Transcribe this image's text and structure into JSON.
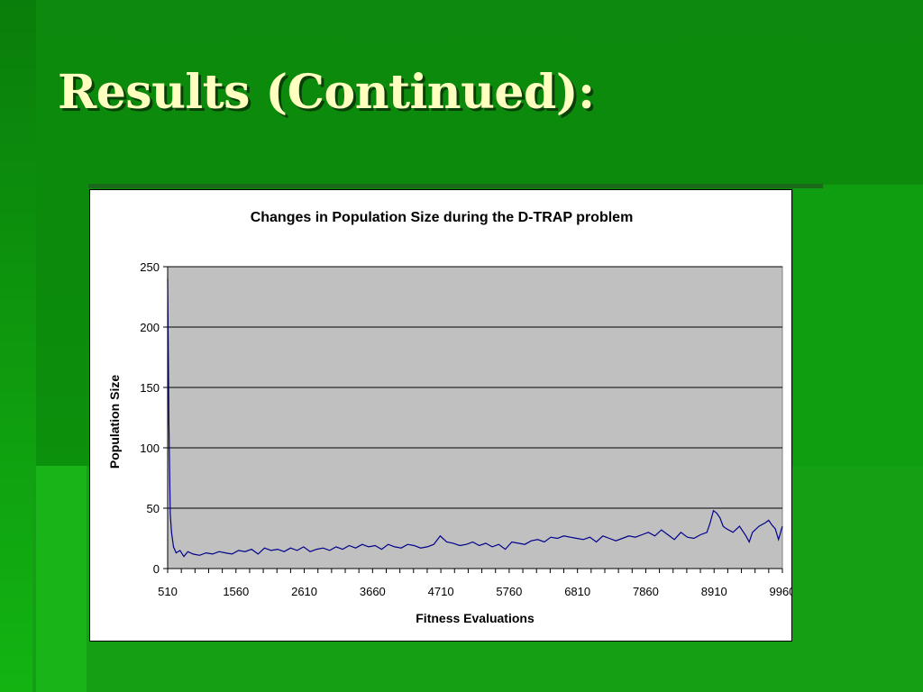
{
  "slide": {
    "title": "Results (Continued):"
  },
  "colors": {
    "series": "#00008b",
    "plot_bg": "#c0c0c0",
    "title_text": "#ffffc0"
  },
  "chart_data": {
    "type": "line",
    "title": "Changes in Population Size during the D-TRAP problem",
    "xlabel": "Fitness Evaluations",
    "ylabel": "Population Size",
    "ylim": [
      0,
      250
    ],
    "yticks": [
      0,
      50,
      100,
      150,
      200,
      250
    ],
    "xlim": [
      510,
      9960
    ],
    "xticks": [
      510,
      1560,
      2610,
      3660,
      4710,
      5760,
      6810,
      7860,
      8910,
      9960
    ],
    "grid": "horizontal",
    "legend": "none",
    "series": [
      {
        "x": [
          510,
          530,
          550,
          570,
          600,
          640,
          700,
          760,
          820,
          900,
          1000,
          1100,
          1200,
          1300,
          1400,
          1500,
          1600,
          1700,
          1800,
          1900,
          2000,
          2100,
          2200,
          2300,
          2400,
          2500,
          2600,
          2700,
          2800,
          2900,
          3000,
          3100,
          3200,
          3300,
          3400,
          3500,
          3600,
          3700,
          3800,
          3900,
          4000,
          4100,
          4200,
          4300,
          4400,
          4500,
          4600,
          4700,
          4800,
          4900,
          5000,
          5100,
          5200,
          5300,
          5400,
          5500,
          5600,
          5700,
          5800,
          5900,
          6000,
          6100,
          6200,
          6300,
          6400,
          6500,
          6600,
          6700,
          6800,
          6900,
          7000,
          7100,
          7200,
          7300,
          7400,
          7500,
          7600,
          7700,
          7800,
          7900,
          8000,
          8100,
          8200,
          8300,
          8400,
          8500,
          8600,
          8700,
          8800,
          8850,
          8900,
          8950,
          9000,
          9050,
          9100,
          9200,
          9300,
          9400,
          9450,
          9500,
          9600,
          9700,
          9750,
          9800,
          9850,
          9900,
          9960
        ],
        "y": [
          240,
          120,
          45,
          30,
          18,
          13,
          15,
          10,
          14,
          12,
          11,
          13,
          12,
          14,
          13,
          12,
          15,
          14,
          16,
          12,
          17,
          15,
          16,
          14,
          17,
          15,
          18,
          14,
          16,
          17,
          15,
          18,
          16,
          19,
          17,
          20,
          18,
          19,
          16,
          20,
          18,
          17,
          20,
          19,
          17,
          18,
          20,
          27,
          22,
          21,
          19,
          20,
          22,
          19,
          21,
          18,
          20,
          16,
          22,
          21,
          20,
          23,
          24,
          22,
          26,
          25,
          27,
          26,
          25,
          24,
          26,
          22,
          27,
          25,
          23,
          25,
          27,
          26,
          28,
          30,
          27,
          32,
          28,
          24,
          30,
          26,
          25,
          28,
          30,
          38,
          48,
          46,
          42,
          35,
          33,
          30,
          35,
          27,
          22,
          30,
          35,
          38,
          40,
          36,
          33,
          24,
          35
        ]
      }
    ]
  }
}
